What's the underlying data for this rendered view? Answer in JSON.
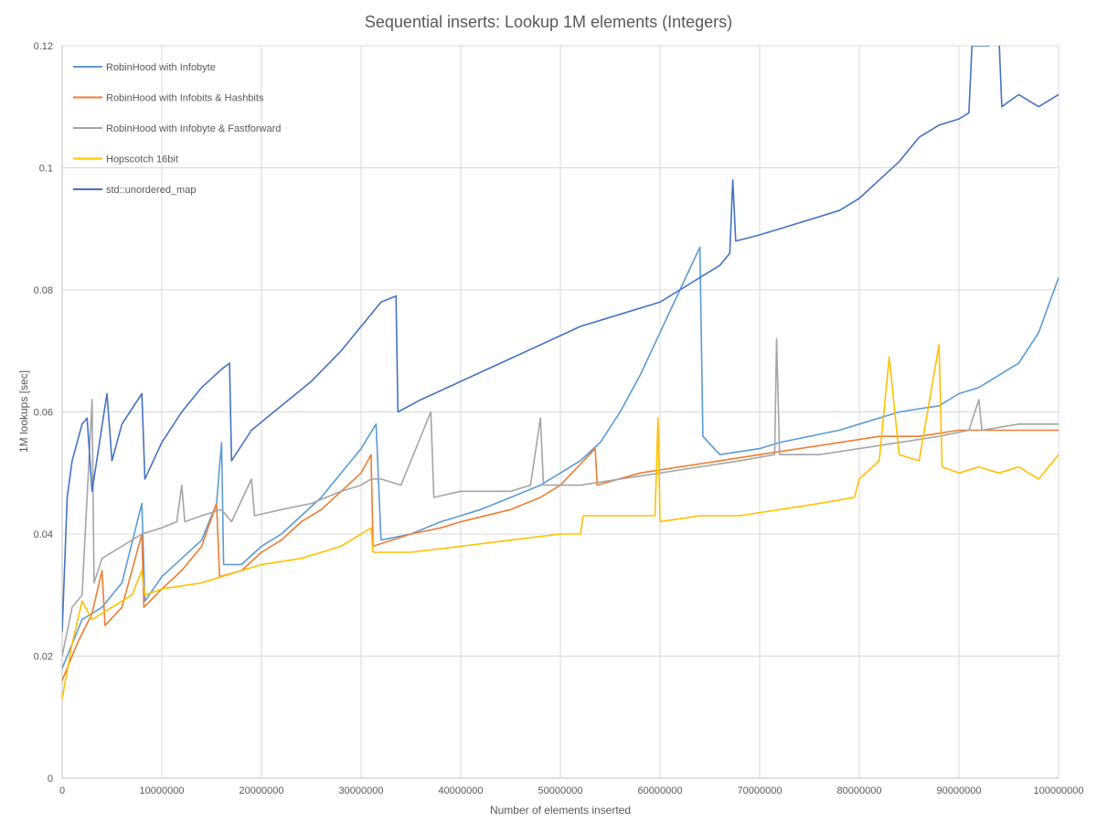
{
  "chart_data": {
    "type": "line",
    "title": "Sequential inserts: Lookup 1M elements (Integers)",
    "xlabel": "Number  of elements  inserted",
    "ylabel": "1M lookups [sec]",
    "xlim": [
      0,
      100000000
    ],
    "ylim": [
      0,
      0.12
    ],
    "grid": true,
    "legend_position": "top-left",
    "x_ticks": [
      0,
      10000000,
      20000000,
      30000000,
      40000000,
      50000000,
      60000000,
      70000000,
      80000000,
      90000000,
      100000000
    ],
    "x_tick_labels": [
      "0",
      "10000000",
      "20000000",
      "30000000",
      "40000000",
      "50000000",
      "60000000",
      "70000000",
      "80000000",
      "90000000",
      "100000000"
    ],
    "y_ticks": [
      0,
      0.02,
      0.04,
      0.06,
      0.08,
      0.1,
      0.12
    ],
    "y_tick_labels": [
      "0",
      "0.02",
      "0.04",
      "0.06",
      "0.08",
      "0.1",
      "0.12"
    ],
    "series": [
      {
        "name": "RobinHood with Infobyte",
        "color": "#5b9bd5",
        "points": [
          [
            0,
            0.018
          ],
          [
            2000000,
            0.026
          ],
          [
            4000000,
            0.028
          ],
          [
            6000000,
            0.032
          ],
          [
            8000000,
            0.045
          ],
          [
            8300000,
            0.029
          ],
          [
            10000000,
            0.033
          ],
          [
            12000000,
            0.036
          ],
          [
            14000000,
            0.039
          ],
          [
            15500000,
            0.045
          ],
          [
            16000000,
            0.055
          ],
          [
            16200000,
            0.035
          ],
          [
            18000000,
            0.035
          ],
          [
            20000000,
            0.038
          ],
          [
            22000000,
            0.04
          ],
          [
            24000000,
            0.043
          ],
          [
            26000000,
            0.046
          ],
          [
            28000000,
            0.05
          ],
          [
            30000000,
            0.054
          ],
          [
            31500000,
            0.058
          ],
          [
            32000000,
            0.039
          ],
          [
            35000000,
            0.04
          ],
          [
            38000000,
            0.042
          ],
          [
            40000000,
            0.043
          ],
          [
            42000000,
            0.044
          ],
          [
            45000000,
            0.046
          ],
          [
            48000000,
            0.048
          ],
          [
            50000000,
            0.05
          ],
          [
            52000000,
            0.052
          ],
          [
            54000000,
            0.055
          ],
          [
            56000000,
            0.06
          ],
          [
            58000000,
            0.066
          ],
          [
            60000000,
            0.073
          ],
          [
            62000000,
            0.08
          ],
          [
            64000000,
            0.087
          ],
          [
            64300000,
            0.056
          ],
          [
            66000000,
            0.053
          ],
          [
            70000000,
            0.054
          ],
          [
            72000000,
            0.055
          ],
          [
            75000000,
            0.056
          ],
          [
            78000000,
            0.057
          ],
          [
            80000000,
            0.058
          ],
          [
            84000000,
            0.06
          ],
          [
            88000000,
            0.061
          ],
          [
            90000000,
            0.063
          ],
          [
            92000000,
            0.064
          ],
          [
            94000000,
            0.066
          ],
          [
            96000000,
            0.068
          ],
          [
            98000000,
            0.073
          ],
          [
            100000000,
            0.082
          ]
        ]
      },
      {
        "name": "RobinHood with Infobits & Hashbits",
        "color": "#ed7d31",
        "points": [
          [
            0,
            0.016
          ],
          [
            1500000,
            0.022
          ],
          [
            3000000,
            0.027
          ],
          [
            4000000,
            0.034
          ],
          [
            4300000,
            0.025
          ],
          [
            6000000,
            0.028
          ],
          [
            8000000,
            0.04
          ],
          [
            8200000,
            0.028
          ],
          [
            10000000,
            0.031
          ],
          [
            12000000,
            0.034
          ],
          [
            14000000,
            0.038
          ],
          [
            15500000,
            0.045
          ],
          [
            15800000,
            0.033
          ],
          [
            18000000,
            0.034
          ],
          [
            20000000,
            0.037
          ],
          [
            22000000,
            0.039
          ],
          [
            24000000,
            0.042
          ],
          [
            26000000,
            0.044
          ],
          [
            28000000,
            0.047
          ],
          [
            30000000,
            0.05
          ],
          [
            31000000,
            0.053
          ],
          [
            31200000,
            0.038
          ],
          [
            35000000,
            0.04
          ],
          [
            38000000,
            0.041
          ],
          [
            40000000,
            0.042
          ],
          [
            45000000,
            0.044
          ],
          [
            48000000,
            0.046
          ],
          [
            50000000,
            0.048
          ],
          [
            53500000,
            0.054
          ],
          [
            53700000,
            0.048
          ],
          [
            58000000,
            0.05
          ],
          [
            62000000,
            0.051
          ],
          [
            66000000,
            0.052
          ],
          [
            70000000,
            0.053
          ],
          [
            74000000,
            0.054
          ],
          [
            78000000,
            0.055
          ],
          [
            82000000,
            0.056
          ],
          [
            86000000,
            0.056
          ],
          [
            90000000,
            0.057
          ],
          [
            94000000,
            0.057
          ],
          [
            100000000,
            0.057
          ]
        ]
      },
      {
        "name": "RobinHood with Infobyte & Fastforward",
        "color": "#a5a5a5",
        "points": [
          [
            0,
            0.02
          ],
          [
            1000000,
            0.028
          ],
          [
            2000000,
            0.03
          ],
          [
            3000000,
            0.062
          ],
          [
            3200000,
            0.032
          ],
          [
            4000000,
            0.036
          ],
          [
            6000000,
            0.038
          ],
          [
            8000000,
            0.04
          ],
          [
            10000000,
            0.041
          ],
          [
            11500000,
            0.042
          ],
          [
            12000000,
            0.048
          ],
          [
            12300000,
            0.042
          ],
          [
            14000000,
            0.043
          ],
          [
            16000000,
            0.044
          ],
          [
            17000000,
            0.042
          ],
          [
            19000000,
            0.049
          ],
          [
            19300000,
            0.043
          ],
          [
            22000000,
            0.044
          ],
          [
            25000000,
            0.045
          ],
          [
            28000000,
            0.047
          ],
          [
            30000000,
            0.048
          ],
          [
            31000000,
            0.049
          ],
          [
            32000000,
            0.049
          ],
          [
            34000000,
            0.048
          ],
          [
            37000000,
            0.06
          ],
          [
            37300000,
            0.046
          ],
          [
            40000000,
            0.047
          ],
          [
            45000000,
            0.047
          ],
          [
            47000000,
            0.048
          ],
          [
            48000000,
            0.059
          ],
          [
            48300000,
            0.048
          ],
          [
            52000000,
            0.048
          ],
          [
            56000000,
            0.049
          ],
          [
            60000000,
            0.05
          ],
          [
            64000000,
            0.051
          ],
          [
            68000000,
            0.052
          ],
          [
            71500000,
            0.053
          ],
          [
            71700000,
            0.072
          ],
          [
            72000000,
            0.053
          ],
          [
            76000000,
            0.053
          ],
          [
            80000000,
            0.054
          ],
          [
            84000000,
            0.055
          ],
          [
            88000000,
            0.056
          ],
          [
            91000000,
            0.057
          ],
          [
            92000000,
            0.062
          ],
          [
            92300000,
            0.057
          ],
          [
            96000000,
            0.058
          ],
          [
            100000000,
            0.058
          ]
        ]
      },
      {
        "name": "Hopscotch 16bit",
        "color": "#ffc000",
        "points": [
          [
            0,
            0.013
          ],
          [
            1000000,
            0.022
          ],
          [
            2000000,
            0.029
          ],
          [
            3000000,
            0.026
          ],
          [
            5000000,
            0.028
          ],
          [
            7000000,
            0.03
          ],
          [
            8000000,
            0.034
          ],
          [
            8300000,
            0.03
          ],
          [
            10000000,
            0.031
          ],
          [
            14000000,
            0.032
          ],
          [
            16000000,
            0.033
          ],
          [
            20000000,
            0.035
          ],
          [
            24000000,
            0.036
          ],
          [
            28000000,
            0.038
          ],
          [
            31000000,
            0.041
          ],
          [
            31200000,
            0.037
          ],
          [
            35000000,
            0.037
          ],
          [
            40000000,
            0.038
          ],
          [
            45000000,
            0.039
          ],
          [
            50000000,
            0.04
          ],
          [
            52000000,
            0.04
          ],
          [
            52300000,
            0.043
          ],
          [
            56000000,
            0.043
          ],
          [
            59500000,
            0.043
          ],
          [
            59800000,
            0.059
          ],
          [
            60000000,
            0.042
          ],
          [
            64000000,
            0.043
          ],
          [
            68000000,
            0.043
          ],
          [
            72000000,
            0.044
          ],
          [
            76000000,
            0.045
          ],
          [
            79500000,
            0.046
          ],
          [
            80000000,
            0.049
          ],
          [
            82000000,
            0.052
          ],
          [
            83000000,
            0.069
          ],
          [
            84000000,
            0.053
          ],
          [
            86000000,
            0.052
          ],
          [
            88000000,
            0.071
          ],
          [
            88300000,
            0.051
          ],
          [
            90000000,
            0.05
          ],
          [
            92000000,
            0.051
          ],
          [
            94000000,
            0.05
          ],
          [
            96000000,
            0.051
          ],
          [
            98000000,
            0.049
          ],
          [
            100000000,
            0.053
          ]
        ]
      },
      {
        "name": "std::unordered_map",
        "color": "#4472c4",
        "points": [
          [
            0,
            0.024
          ],
          [
            500000,
            0.046
          ],
          [
            1000000,
            0.052
          ],
          [
            2000000,
            0.058
          ],
          [
            2500000,
            0.059
          ],
          [
            3000000,
            0.047
          ],
          [
            4500000,
            0.063
          ],
          [
            5000000,
            0.052
          ],
          [
            6000000,
            0.058
          ],
          [
            8000000,
            0.063
          ],
          [
            8300000,
            0.049
          ],
          [
            10000000,
            0.055
          ],
          [
            12000000,
            0.06
          ],
          [
            14000000,
            0.064
          ],
          [
            16000000,
            0.067
          ],
          [
            16800000,
            0.068
          ],
          [
            17000000,
            0.052
          ],
          [
            19000000,
            0.057
          ],
          [
            22000000,
            0.061
          ],
          [
            25000000,
            0.065
          ],
          [
            28000000,
            0.07
          ],
          [
            30000000,
            0.074
          ],
          [
            32000000,
            0.078
          ],
          [
            33500000,
            0.079
          ],
          [
            33700000,
            0.06
          ],
          [
            36000000,
            0.062
          ],
          [
            40000000,
            0.065
          ],
          [
            44000000,
            0.068
          ],
          [
            48000000,
            0.071
          ],
          [
            52000000,
            0.074
          ],
          [
            56000000,
            0.076
          ],
          [
            60000000,
            0.078
          ],
          [
            62000000,
            0.08
          ],
          [
            64000000,
            0.082
          ],
          [
            66000000,
            0.084
          ],
          [
            67000000,
            0.086
          ],
          [
            67300000,
            0.098
          ],
          [
            67600000,
            0.088
          ],
          [
            70000000,
            0.089
          ],
          [
            74000000,
            0.091
          ],
          [
            78000000,
            0.093
          ],
          [
            80000000,
            0.095
          ],
          [
            82000000,
            0.098
          ],
          [
            84000000,
            0.101
          ],
          [
            86000000,
            0.105
          ],
          [
            88000000,
            0.107
          ],
          [
            90000000,
            0.108
          ],
          [
            91000000,
            0.109
          ],
          [
            91300000,
            0.12
          ],
          [
            93000000,
            0.12
          ],
          [
            94000000,
            0.122
          ],
          [
            94300000,
            0.11
          ],
          [
            96000000,
            0.112
          ],
          [
            98000000,
            0.11
          ],
          [
            100000000,
            0.112
          ]
        ]
      }
    ]
  }
}
